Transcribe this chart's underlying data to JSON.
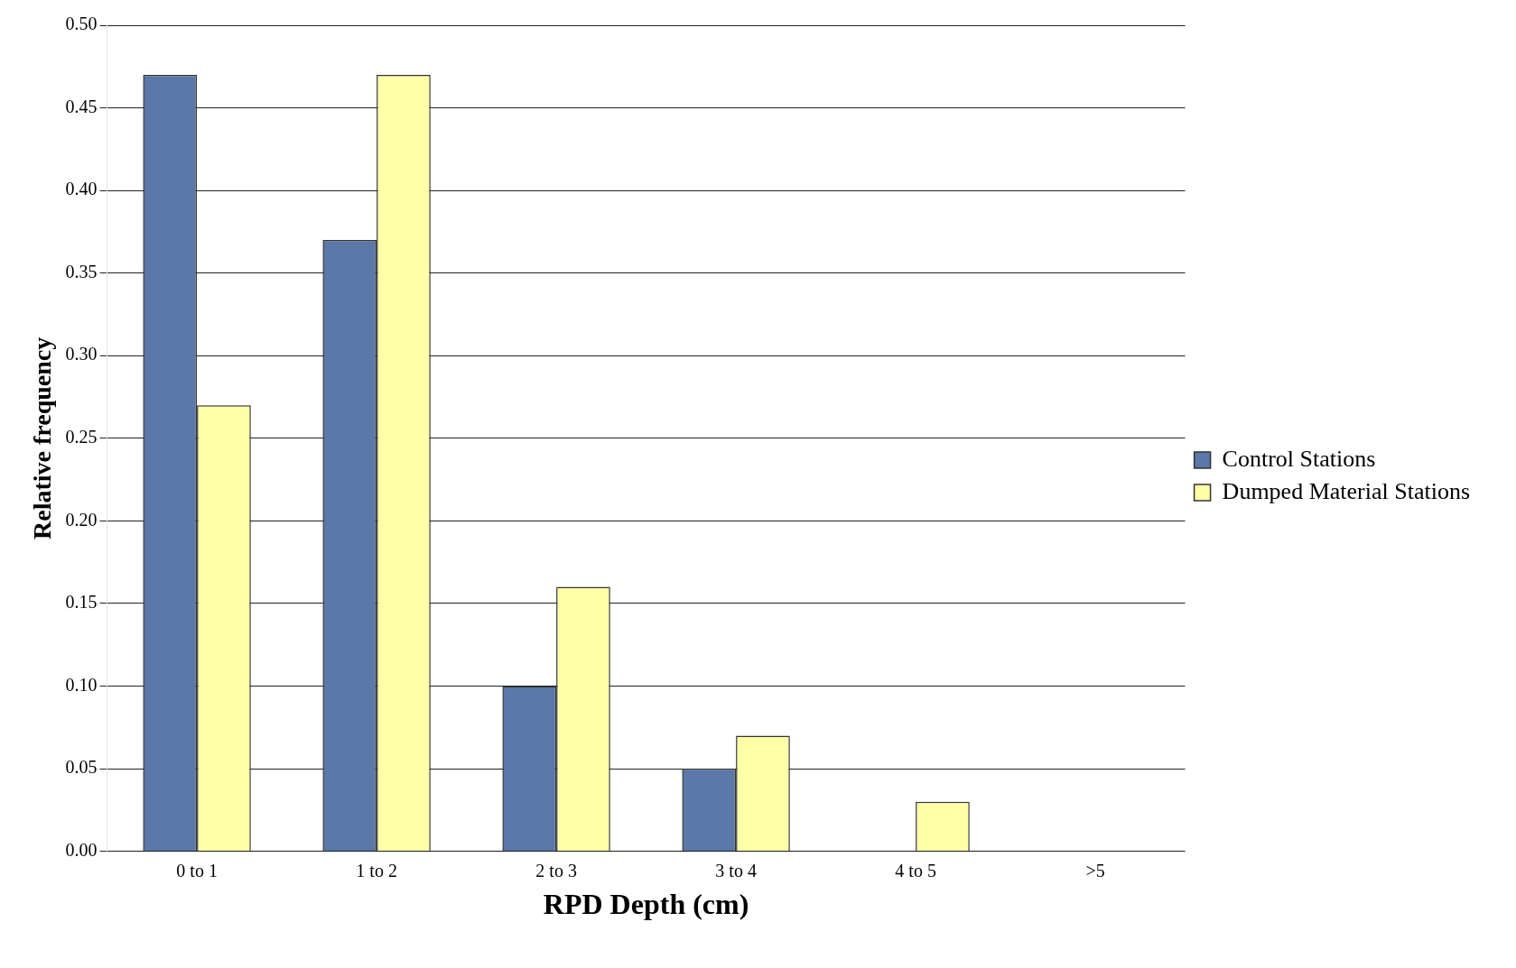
{
  "chart_data": {
    "type": "bar",
    "xlabel": "RPD Depth (cm)",
    "ylabel": "Relative frequency",
    "categories": [
      "0 to 1",
      "1 to 2",
      "2 to 3",
      "3 to 4",
      "4 to 5",
      ">5"
    ],
    "series": [
      {
        "name": "Control Stations",
        "color": "#5a78a8",
        "values": [
          0.47,
          0.37,
          0.1,
          0.05,
          0,
          0
        ]
      },
      {
        "name": "Dumped Material Stations",
        "color": "#ffffa8",
        "values": [
          0.27,
          0.47,
          0.16,
          0.07,
          0.03,
          0
        ]
      }
    ],
    "ylim": [
      0,
      0.5
    ],
    "yticks": [
      {
        "value": 0,
        "label": "0.00"
      },
      {
        "value": 0.05,
        "label": "0.05"
      },
      {
        "value": 0.1,
        "label": "0.10"
      },
      {
        "value": 0.15,
        "label": "0.15"
      },
      {
        "value": 0.2,
        "label": "0.20"
      },
      {
        "value": 0.25,
        "label": "0.25"
      },
      {
        "value": 0.3,
        "label": "0.30"
      },
      {
        "value": 0.35,
        "label": "0.35"
      },
      {
        "value": 0.4,
        "label": "0.40"
      },
      {
        "value": 0.45,
        "label": "0.45"
      },
      {
        "value": 0.5,
        "label": "0.50"
      }
    ],
    "grid": "y",
    "legend": "right"
  }
}
